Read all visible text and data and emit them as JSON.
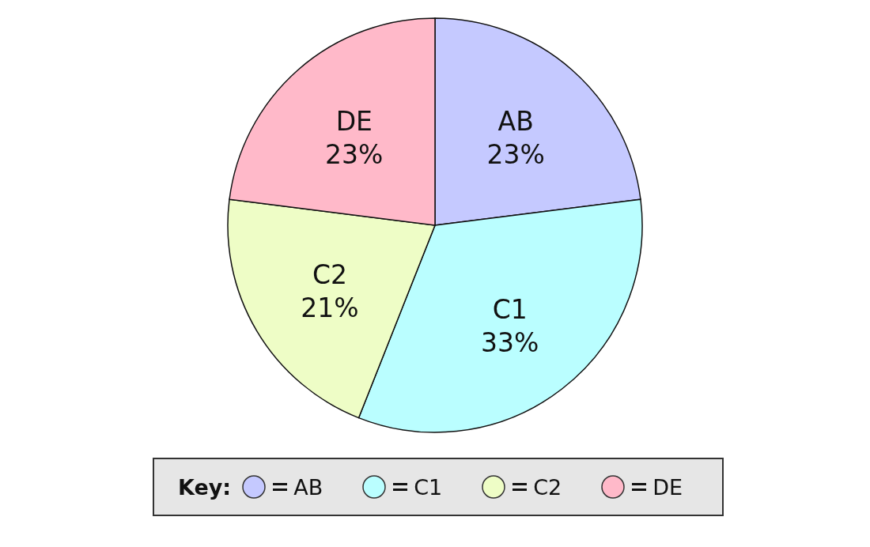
{
  "chart_data": {
    "type": "pie",
    "categories": [
      "AB",
      "C1",
      "C2",
      "DE"
    ],
    "values": [
      23,
      33,
      21,
      23
    ],
    "value_labels": [
      "23%",
      "33%",
      "21%",
      "23%"
    ],
    "colors": [
      "#c5c9ff",
      "#bafeff",
      "#eefdc6",
      "#ffb9c9"
    ],
    "legend": "bottom",
    "legend_title": "Key:"
  }
}
